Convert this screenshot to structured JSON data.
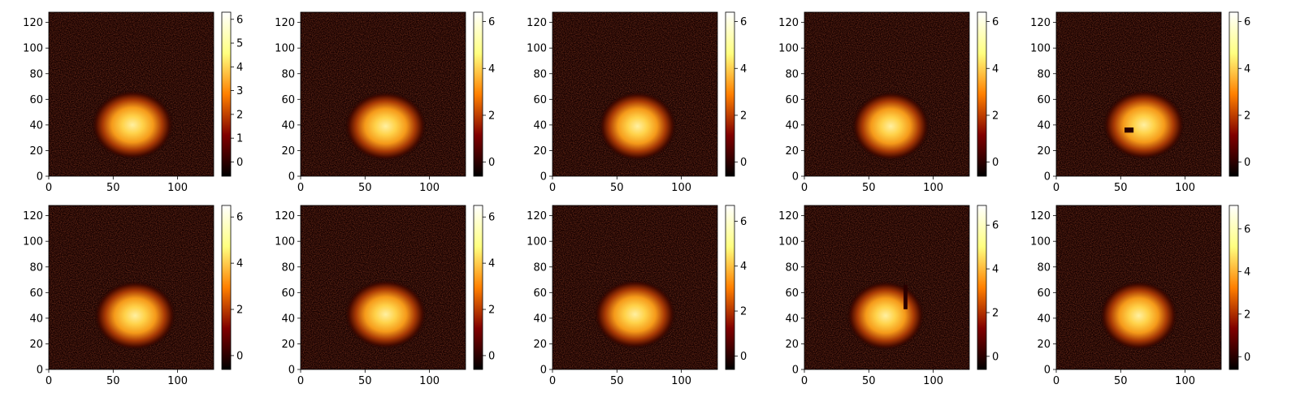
{
  "chart_data": [
    {
      "type": "heatmap",
      "colormap": "afmhot",
      "xlim": [
        0,
        128
      ],
      "ylim": [
        0,
        128
      ],
      "x_ticks": [
        0,
        50,
        100
      ],
      "y_ticks": [
        0,
        20,
        40,
        60,
        80,
        100,
        120
      ],
      "blob_center": [
        65,
        40
      ],
      "blob_radius": [
        20,
        17
      ],
      "cbar_range": [
        -0.6,
        6.3
      ],
      "cbar_ticks": [
        0,
        1,
        2,
        3,
        4,
        5,
        6
      ],
      "masks": []
    },
    {
      "type": "heatmap",
      "colormap": "afmhot",
      "xlim": [
        0,
        128
      ],
      "ylim": [
        0,
        128
      ],
      "x_ticks": [
        0,
        50,
        100
      ],
      "y_ticks": [
        0,
        20,
        40,
        60,
        80,
        100,
        120
      ],
      "blob_center": [
        66,
        39
      ],
      "blob_radius": [
        20,
        17
      ],
      "cbar_range": [
        -0.6,
        6.4
      ],
      "cbar_ticks": [
        0,
        2,
        4,
        6
      ],
      "masks": []
    },
    {
      "type": "heatmap",
      "colormap": "afmhot",
      "xlim": [
        0,
        128
      ],
      "ylim": [
        0,
        128
      ],
      "x_ticks": [
        0,
        50,
        100
      ],
      "y_ticks": [
        0,
        20,
        40,
        60,
        80,
        100,
        120
      ],
      "blob_center": [
        66,
        39
      ],
      "blob_radius": [
        19,
        17
      ],
      "cbar_range": [
        -0.6,
        6.4
      ],
      "cbar_ticks": [
        0,
        2,
        4,
        6
      ],
      "masks": []
    },
    {
      "type": "heatmap",
      "colormap": "afmhot",
      "xlim": [
        0,
        128
      ],
      "ylim": [
        0,
        128
      ],
      "x_ticks": [
        0,
        50,
        100
      ],
      "y_ticks": [
        0,
        20,
        40,
        60,
        80,
        100,
        120
      ],
      "blob_center": [
        67,
        39
      ],
      "blob_radius": [
        19,
        17
      ],
      "cbar_range": [
        -0.6,
        6.4
      ],
      "cbar_ticks": [
        0,
        2,
        4,
        6
      ],
      "masks": []
    },
    {
      "type": "heatmap",
      "colormap": "afmhot",
      "xlim": [
        0,
        128
      ],
      "ylim": [
        0,
        128
      ],
      "x_ticks": [
        0,
        50,
        100
      ],
      "y_ticks": [
        0,
        20,
        40,
        60,
        80,
        100,
        120
      ],
      "blob_center": [
        68,
        40
      ],
      "blob_radius": [
        20,
        17
      ],
      "cbar_range": [
        -0.6,
        6.4
      ],
      "cbar_ticks": [
        0,
        2,
        4,
        6
      ],
      "masks": [
        {
          "x": [
            53,
            60
          ],
          "y": [
            34,
            38
          ]
        }
      ]
    },
    {
      "type": "heatmap",
      "colormap": "afmhot",
      "xlim": [
        0,
        128
      ],
      "ylim": [
        0,
        128
      ],
      "x_ticks": [
        0,
        50,
        100
      ],
      "y_ticks": [
        0,
        20,
        40,
        60,
        80,
        100,
        120
      ],
      "blob_center": [
        67,
        42
      ],
      "blob_radius": [
        20,
        17
      ],
      "cbar_range": [
        -0.6,
        6.5
      ],
      "cbar_ticks": [
        0,
        2,
        4,
        6
      ],
      "masks": []
    },
    {
      "type": "heatmap",
      "colormap": "afmhot",
      "xlim": [
        0,
        128
      ],
      "ylim": [
        0,
        128
      ],
      "x_ticks": [
        0,
        50,
        100
      ],
      "y_ticks": [
        0,
        20,
        40,
        60,
        80,
        100,
        120
      ],
      "blob_center": [
        66,
        43
      ],
      "blob_radius": [
        20,
        17
      ],
      "cbar_range": [
        -0.6,
        6.5
      ],
      "cbar_ticks": [
        0,
        2,
        4,
        6
      ],
      "masks": []
    },
    {
      "type": "heatmap",
      "colormap": "afmhot",
      "xlim": [
        0,
        128
      ],
      "ylim": [
        0,
        128
      ],
      "x_ticks": [
        0,
        50,
        100
      ],
      "y_ticks": [
        0,
        20,
        40,
        60,
        80,
        100,
        120
      ],
      "blob_center": [
        64,
        43
      ],
      "blob_radius": [
        20,
        17
      ],
      "cbar_range": [
        -0.6,
        6.7
      ],
      "cbar_ticks": [
        0,
        2,
        4,
        6
      ],
      "masks": []
    },
    {
      "type": "heatmap",
      "colormap": "afmhot",
      "xlim": [
        0,
        128
      ],
      "ylim": [
        0,
        128
      ],
      "x_ticks": [
        0,
        50,
        100
      ],
      "y_ticks": [
        0,
        20,
        40,
        60,
        80,
        100,
        120
      ],
      "blob_center": [
        63,
        42
      ],
      "blob_radius": [
        19,
        17
      ],
      "cbar_range": [
        -0.6,
        6.9
      ],
      "cbar_ticks": [
        0,
        2,
        4,
        6
      ],
      "masks": [
        {
          "x": [
            77,
            80
          ],
          "y": [
            47,
            66
          ]
        }
      ]
    },
    {
      "type": "heatmap",
      "colormap": "afmhot",
      "xlim": [
        0,
        128
      ],
      "ylim": [
        0,
        128
      ],
      "x_ticks": [
        0,
        50,
        100
      ],
      "y_ticks": [
        0,
        20,
        40,
        60,
        80,
        100,
        120
      ],
      "blob_center": [
        64,
        42
      ],
      "blob_radius": [
        19,
        17
      ],
      "cbar_range": [
        -0.6,
        7.1
      ],
      "cbar_ticks": [
        0,
        2,
        4,
        6
      ],
      "masks": []
    }
  ]
}
